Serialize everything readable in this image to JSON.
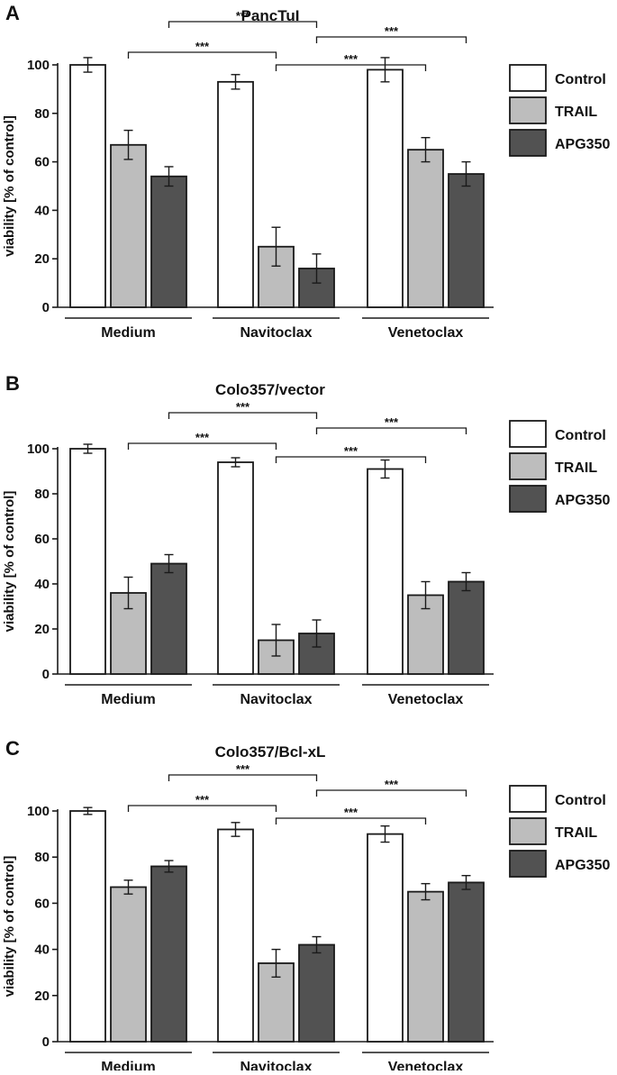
{
  "colors": {
    "Control": "#ffffff",
    "TRAIL": "#bdbdbd",
    "APG350": "#525252",
    "stroke": "#1a1a1a"
  },
  "chart_data": [
    {
      "type": "bar",
      "panel_label": "A",
      "title": "PancTuI",
      "ylabel": "viability [% of control]",
      "ylim": [
        0,
        100
      ],
      "yticks": [
        0,
        20,
        40,
        60,
        80,
        100
      ],
      "categories": [
        "Medium",
        "Navitoclax",
        "Venetoclax"
      ],
      "series": [
        {
          "name": "Control",
          "values": [
            100,
            93,
            98
          ],
          "errors": [
            3,
            3,
            5
          ]
        },
        {
          "name": "TRAIL",
          "values": [
            67,
            25,
            65
          ],
          "errors": [
            6,
            8,
            5
          ]
        },
        {
          "name": "APG350",
          "values": [
            54,
            16,
            55
          ],
          "errors": [
            4,
            6,
            5
          ]
        }
      ],
      "significance": [
        {
          "from": [
            0,
            1
          ],
          "to": [
            1,
            1
          ],
          "label": "***",
          "level": 3
        },
        {
          "from": [
            1,
            1
          ],
          "to": [
            2,
            1
          ],
          "label": "***",
          "level": 4
        },
        {
          "from": [
            0,
            2
          ],
          "to": [
            1,
            2
          ],
          "label": "***",
          "level": 1
        },
        {
          "from": [
            1,
            2
          ],
          "to": [
            2,
            2
          ],
          "label": "***",
          "level": 2
        }
      ],
      "legend": [
        "Control",
        "TRAIL",
        "APG350"
      ]
    },
    {
      "type": "bar",
      "panel_label": "B",
      "title": "Colo357/vector",
      "ylabel": "viability [% of control]",
      "ylim": [
        0,
        100
      ],
      "yticks": [
        0,
        20,
        40,
        60,
        80,
        100
      ],
      "categories": [
        "Medium",
        "Navitoclax",
        "Venetoclax"
      ],
      "series": [
        {
          "name": "Control",
          "values": [
            100,
            94,
            91
          ],
          "errors": [
            2,
            2,
            4
          ]
        },
        {
          "name": "TRAIL",
          "values": [
            36,
            15,
            35
          ],
          "errors": [
            7,
            7,
            6
          ]
        },
        {
          "name": "APG350",
          "values": [
            49,
            18,
            41
          ],
          "errors": [
            4,
            6,
            4
          ]
        }
      ],
      "significance": [
        {
          "from": [
            0,
            1
          ],
          "to": [
            1,
            1
          ],
          "label": "***",
          "level": 3
        },
        {
          "from": [
            1,
            1
          ],
          "to": [
            2,
            1
          ],
          "label": "***",
          "level": 4
        },
        {
          "from": [
            0,
            2
          ],
          "to": [
            1,
            2
          ],
          "label": "***",
          "level": 1
        },
        {
          "from": [
            1,
            2
          ],
          "to": [
            2,
            2
          ],
          "label": "***",
          "level": 2
        }
      ],
      "legend": [
        "Control",
        "TRAIL",
        "APG350"
      ]
    },
    {
      "type": "bar",
      "panel_label": "C",
      "title": "Colo357/Bcl-xL",
      "ylabel": "viability [% of control]",
      "ylim": [
        0,
        100
      ],
      "yticks": [
        0,
        20,
        40,
        60,
        80,
        100
      ],
      "categories": [
        "Medium",
        "Navitoclax",
        "Venetoclax"
      ],
      "series": [
        {
          "name": "Control",
          "values": [
            100,
            92,
            90
          ],
          "errors": [
            1.5,
            3,
            3.5
          ]
        },
        {
          "name": "TRAIL",
          "values": [
            67,
            34,
            65
          ],
          "errors": [
            3,
            6,
            3.5
          ]
        },
        {
          "name": "APG350",
          "values": [
            76,
            42,
            69
          ],
          "errors": [
            2.5,
            3.5,
            3
          ]
        }
      ],
      "significance": [
        {
          "from": [
            0,
            1
          ],
          "to": [
            1,
            1
          ],
          "label": "***",
          "level": 3
        },
        {
          "from": [
            1,
            1
          ],
          "to": [
            2,
            1
          ],
          "label": "***",
          "level": 4
        },
        {
          "from": [
            0,
            2
          ],
          "to": [
            1,
            2
          ],
          "label": "***",
          "level": 1
        },
        {
          "from": [
            1,
            2
          ],
          "to": [
            2,
            2
          ],
          "label": "***",
          "level": 2
        }
      ],
      "legend": [
        "Control",
        "TRAIL",
        "APG350"
      ]
    }
  ]
}
